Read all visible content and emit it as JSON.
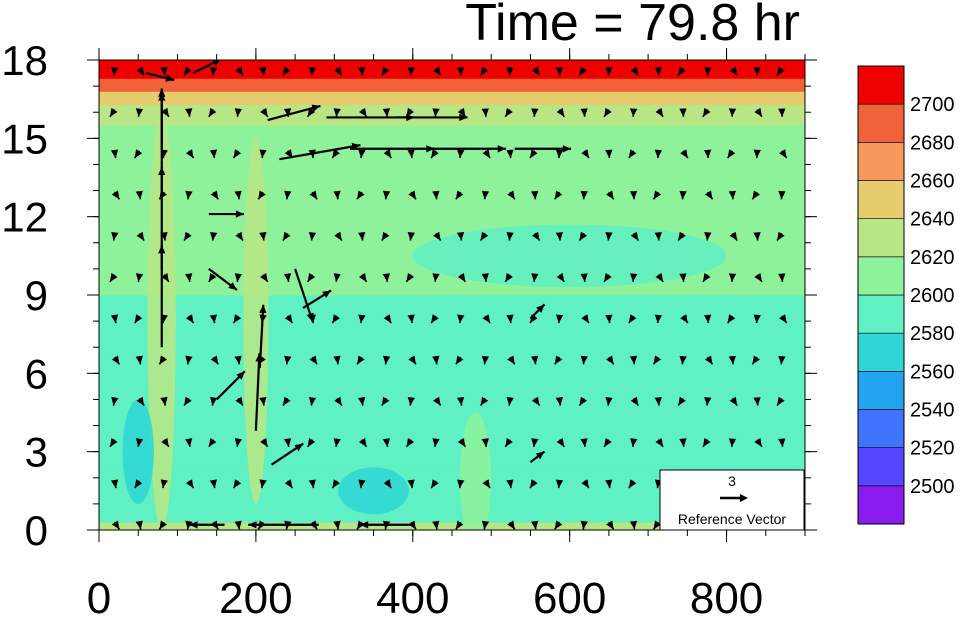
{
  "title": "Time = 79.8 hr",
  "chart_data": {
    "type": "heatmap",
    "title": "Time = 79.8 hr",
    "xlabel": "",
    "ylabel": "",
    "xlim": [
      0,
      900
    ],
    "ylim": [
      0,
      18
    ],
    "x_ticks": [
      0,
      200,
      400,
      600,
      800
    ],
    "y_ticks": [
      0,
      3,
      6,
      9,
      12,
      15,
      18
    ],
    "colorbar": {
      "levels": [
        2500,
        2520,
        2540,
        2560,
        2580,
        2600,
        2620,
        2640,
        2660,
        2680,
        2700
      ],
      "labels": [
        "2500",
        "2520",
        "2540",
        "2560",
        "2580",
        "2600",
        "2620",
        "2640",
        "2660",
        "2680",
        "2700"
      ],
      "colors": [
        "#8a1cf0",
        "#5546ff",
        "#3f74ff",
        "#22a4f0",
        "#2ed6d6",
        "#5ff0c4",
        "#8ef29a",
        "#b8e685",
        "#e6cc6e",
        "#f59a5a",
        "#f2623a",
        "#ee0000"
      ]
    },
    "field_bands": [
      {
        "y_min": 0,
        "y_max": 0.3,
        "value": 2630
      },
      {
        "y_min": 0.3,
        "y_max": 2.5,
        "value": 2585
      },
      {
        "y_min": 2.5,
        "y_max": 9,
        "value": 2585
      },
      {
        "y_min": 9,
        "y_max": 12,
        "value": 2600
      },
      {
        "y_min": 12,
        "y_max": 15.5,
        "value": 2605
      },
      {
        "y_min": 15.5,
        "y_max": 16.3,
        "value": 2620
      },
      {
        "y_min": 16.3,
        "y_max": 16.8,
        "value": 2650
      },
      {
        "y_min": 16.8,
        "y_max": 17.3,
        "value": 2680
      },
      {
        "y_min": 17.3,
        "y_max": 18,
        "value": 2710
      }
    ],
    "field_patches": [
      {
        "x": 80,
        "y": 8,
        "rx": 18,
        "ry": 8,
        "value": 2630
      },
      {
        "x": 200,
        "y": 8,
        "rx": 16,
        "ry": 7,
        "value": 2625
      },
      {
        "x": 350,
        "y": 1.5,
        "rx": 45,
        "ry": 0.9,
        "value": 2570
      },
      {
        "x": 50,
        "y": 3,
        "rx": 20,
        "ry": 2,
        "value": 2575
      },
      {
        "x": 480,
        "y": 2,
        "rx": 20,
        "ry": 2.5,
        "value": 2600
      },
      {
        "x": 600,
        "y": 10.5,
        "rx": 200,
        "ry": 1.2,
        "value": 2590
      }
    ],
    "vectors": [
      {
        "x": 80,
        "y": 7,
        "u": 0,
        "v": 2.9
      },
      {
        "x": 80,
        "y": 10,
        "u": 0,
        "v": 2.9
      },
      {
        "x": 80,
        "y": 13,
        "u": 0,
        "v": 2.9
      },
      {
        "x": 80,
        "y": 14.6,
        "u": 0,
        "v": 1.6
      },
      {
        "x": 200,
        "y": 3.8,
        "u": 0.1,
        "v": 2.2
      },
      {
        "x": 205,
        "y": 6.2,
        "u": 0.1,
        "v": 1.8
      },
      {
        "x": 215,
        "y": 15.7,
        "u": 1.5,
        "v": 0.4
      },
      {
        "x": 290,
        "y": 15.8,
        "u": 2.5,
        "v": 0
      },
      {
        "x": 380,
        "y": 15.8,
        "u": 2,
        "v": 0
      },
      {
        "x": 230,
        "y": 14.2,
        "u": 2.3,
        "v": 0.4
      },
      {
        "x": 320,
        "y": 14.6,
        "u": 2.4,
        "v": 0
      },
      {
        "x": 420,
        "y": 14.6,
        "u": 2.2,
        "v": 0
      },
      {
        "x": 530,
        "y": 14.6,
        "u": 1.6,
        "v": 0
      },
      {
        "x": 140,
        "y": 12.1,
        "u": 1,
        "v": 0
      },
      {
        "x": 140,
        "y": 10,
        "u": 0.8,
        "v": -0.6
      },
      {
        "x": 260,
        "y": 8.5,
        "u": 0.8,
        "v": 0.5
      },
      {
        "x": 250,
        "y": 10,
        "u": 0.5,
        "v": -1.5
      },
      {
        "x": 150,
        "y": 5,
        "u": 0.8,
        "v": 0.8
      },
      {
        "x": 220,
        "y": 2.5,
        "u": 0.9,
        "v": 0.6
      },
      {
        "x": 60,
        "y": 17.5,
        "u": 0.8,
        "v": -0.2
      },
      {
        "x": 120,
        "y": 17.5,
        "u": 0.8,
        "v": 0.4
      },
      {
        "x": 160,
        "y": 0.2,
        "u": -1,
        "v": 0
      },
      {
        "x": 280,
        "y": 0.2,
        "u": -2,
        "v": 0
      },
      {
        "x": 400,
        "y": 0.2,
        "u": -1.5,
        "v": 0
      },
      {
        "x": 550,
        "y": 2.6,
        "u": 0.4,
        "v": 0.3
      },
      {
        "x": 550,
        "y": 8.1,
        "u": 0.4,
        "v": 0.4
      }
    ],
    "reference_vector": {
      "value": "3",
      "label": "Reference Vector"
    }
  }
}
